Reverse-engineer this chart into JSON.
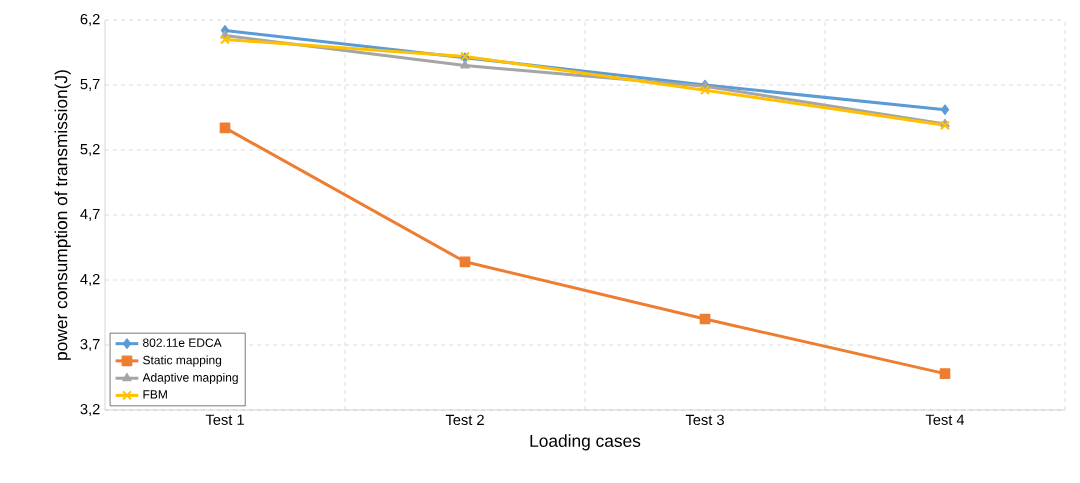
{
  "chart_data": {
    "type": "line",
    "xlabel": "Loading cases",
    "ylabel": "power consumption of transmission(J)",
    "categories": [
      "Test 1",
      "Test 2",
      "Test 3",
      "Test 4"
    ],
    "series": [
      {
        "name": "802.11e EDCA",
        "color": "#5b9bd5",
        "marker": "diamond",
        "values": [
          6.12,
          5.91,
          5.7,
          5.51
        ]
      },
      {
        "name": "Static mapping",
        "color": "#ed7d31",
        "marker": "square",
        "values": [
          5.37,
          4.34,
          3.9,
          3.48
        ]
      },
      {
        "name": "Adaptive mapping",
        "color": "#a5a5a5",
        "marker": "triangle",
        "values": [
          6.08,
          5.85,
          5.69,
          5.4
        ]
      },
      {
        "name": "FBM",
        "color": "#ffc000",
        "marker": "cross",
        "values": [
          6.05,
          5.92,
          5.66,
          5.39
        ]
      }
    ],
    "ylim": [
      3.2,
      6.2
    ],
    "yticks": [
      {
        "value": 3.2,
        "label": "3,2"
      },
      {
        "value": 3.7,
        "label": "3,7"
      },
      {
        "value": 4.2,
        "label": "4,2"
      },
      {
        "value": 4.7,
        "label": "4,7"
      },
      {
        "value": 5.2,
        "label": "5,2"
      },
      {
        "value": 5.7,
        "label": "5,7"
      },
      {
        "value": 6.2,
        "label": "6,2"
      }
    ],
    "grid": true,
    "legend": "bottom left",
    "line_style": "solid"
  }
}
